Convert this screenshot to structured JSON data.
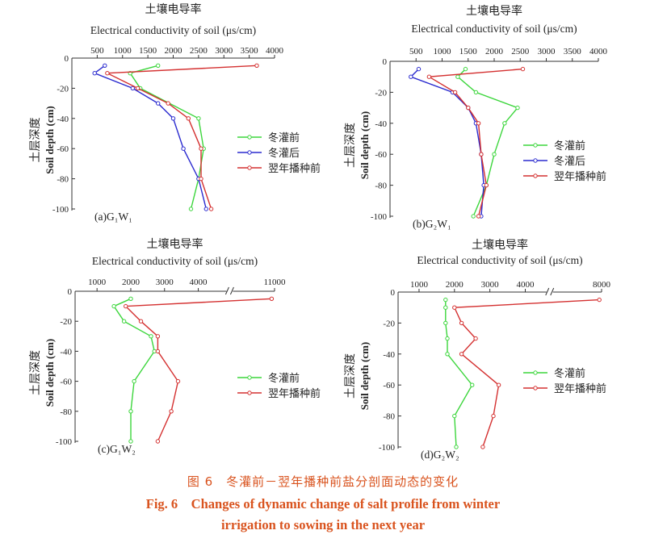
{
  "colors": {
    "before": "#3cd63c",
    "after": "#2b2bcf",
    "next": "#d43030",
    "caption": "#d9531e"
  },
  "caption": {
    "cn": "图 6　冬灌前－翌年播种前盐分剖面动态的变化",
    "en_line1": "Fig. 6　Changes of dynamic change of salt profile from winter",
    "en_line2": "irrigation to sowing in the next year"
  },
  "chart_data": [
    {
      "type": "line",
      "panel_label": "(a)G₁W₁",
      "xlabel_cn": "土壤电导率",
      "xlabel": "Electrical conductivity of soil (μs/cm)",
      "ylabel_cn": "土层深度",
      "ylabel": "Soil depth (cm)",
      "xlim": [
        0,
        4000
      ],
      "ylim": [
        -100,
        0
      ],
      "xticks": [
        500,
        1000,
        1500,
        2000,
        2500,
        3000,
        3500,
        4000
      ],
      "yticks": [
        0,
        -20,
        -40,
        -60,
        -80,
        -100
      ],
      "legend_position": "right",
      "series": [
        {
          "name": "冬灌前",
          "color_key": "before",
          "points": [
            [
              1700,
              -5
            ],
            [
              1150,
              -10
            ],
            [
              1350,
              -20
            ],
            [
              2500,
              -40
            ],
            [
              2600,
              -60
            ],
            [
              2500,
              -80
            ],
            [
              2350,
              -100
            ]
          ]
        },
        {
          "name": "冬灌后",
          "color_key": "after",
          "points": [
            [
              650,
              -5
            ],
            [
              450,
              -10
            ],
            [
              1200,
              -20
            ],
            [
              1700,
              -30
            ],
            [
              2000,
              -40
            ],
            [
              2200,
              -60
            ],
            [
              2500,
              -80
            ],
            [
              2650,
              -100
            ]
          ]
        },
        {
          "name": "翌年播种前",
          "color_key": "next",
          "points": [
            [
              3650,
              -5
            ],
            [
              700,
              -10
            ],
            [
              1300,
              -20
            ],
            [
              1900,
              -30
            ],
            [
              2300,
              -40
            ],
            [
              2550,
              -60
            ],
            [
              2550,
              -80
            ],
            [
              2750,
              -100
            ]
          ]
        }
      ]
    },
    {
      "type": "line",
      "panel_label": "(b)G₂W₁",
      "xlabel_cn": "土壤电导率",
      "xlabel": "Electrical conductivity of soil (μs/cm)",
      "ylabel_cn": "土层深度",
      "ylabel": "Soil depth (cm)",
      "xlim": [
        0,
        4000
      ],
      "ylim": [
        -100,
        0
      ],
      "xticks": [
        500,
        1000,
        1500,
        2000,
        2500,
        3000,
        3500,
        4000
      ],
      "yticks": [
        0,
        -20,
        -40,
        -60,
        -80,
        -100
      ],
      "legend_position": "right",
      "series": [
        {
          "name": "冬灌前",
          "color_key": "before",
          "points": [
            [
              1450,
              -5
            ],
            [
              1300,
              -10
            ],
            [
              1650,
              -20
            ],
            [
              2450,
              -30
            ],
            [
              2200,
              -40
            ],
            [
              2000,
              -60
            ],
            [
              1850,
              -80
            ],
            [
              1600,
              -100
            ]
          ]
        },
        {
          "name": "冬灌后",
          "color_key": "after",
          "points": [
            [
              550,
              -5
            ],
            [
              400,
              -10
            ],
            [
              1200,
              -20
            ],
            [
              1500,
              -30
            ],
            [
              1650,
              -40
            ],
            [
              1750,
              -60
            ],
            [
              1800,
              -80
            ],
            [
              1750,
              -100
            ]
          ]
        },
        {
          "name": "翌年播种前",
          "color_key": "next",
          "points": [
            [
              2550,
              -5
            ],
            [
              750,
              -10
            ],
            [
              1250,
              -20
            ],
            [
              1500,
              -30
            ],
            [
              1700,
              -40
            ],
            [
              1750,
              -60
            ],
            [
              1850,
              -80
            ],
            [
              1700,
              -100
            ]
          ]
        }
      ]
    },
    {
      "type": "line",
      "panel_label": "(c)G₁W₂",
      "xlabel_cn": "土壤电导率",
      "xlabel": "Electrical conductivity of soil (μs/cm)",
      "ylabel_cn": "土层深度",
      "ylabel": "Soil depth (cm)",
      "x_break": true,
      "xticks": [
        "1000",
        "2000",
        "3000",
        "4000",
        "11000"
      ],
      "yticks": [
        0,
        -20,
        -40,
        -60,
        -80,
        -100
      ],
      "legend_position": "right",
      "series": [
        {
          "name": "冬灌前",
          "color_key": "before",
          "points": [
            [
              2000,
              -5
            ],
            [
              1500,
              -10
            ],
            [
              1800,
              -20
            ],
            [
              2600,
              -30
            ],
            [
              2700,
              -40
            ],
            [
              2100,
              -60
            ],
            [
              2000,
              -80
            ],
            [
              2000,
              -100
            ]
          ]
        },
        {
          "name": "翌年播种前",
          "color_key": "next",
          "points": [
            [
              10500,
              -5
            ],
            [
              1850,
              -10
            ],
            [
              2300,
              -20
            ],
            [
              2800,
              -30
            ],
            [
              2800,
              -40
            ],
            [
              3400,
              -60
            ],
            [
              3200,
              -80
            ],
            [
              2800,
              -100
            ]
          ]
        }
      ]
    },
    {
      "type": "line",
      "panel_label": "(d)G₂W₂",
      "xlabel_cn": "土壤电导率",
      "xlabel": "Electrical conductivity of soil (μs/cm)",
      "ylabel_cn": "土层深度",
      "ylabel": "Soil depth (cm)",
      "x_break": true,
      "xticks": [
        "1000",
        "2000",
        "3000",
        "4000",
        "8000"
      ],
      "yticks": [
        0,
        -20,
        -40,
        -60,
        -80,
        -100
      ],
      "legend_position": "right",
      "series": [
        {
          "name": "冬灌前",
          "color_key": "before",
          "points": [
            [
              1750,
              -5
            ],
            [
              1750,
              -10
            ],
            [
              1750,
              -20
            ],
            [
              1800,
              -30
            ],
            [
              1800,
              -40
            ],
            [
              2500,
              -60
            ],
            [
              2000,
              -80
            ],
            [
              2050,
              -100
            ]
          ]
        },
        {
          "name": "翌年播种前",
          "color_key": "next",
          "points": [
            [
              7800,
              -5
            ],
            [
              2000,
              -10
            ],
            [
              2200,
              -20
            ],
            [
              2600,
              -30
            ],
            [
              2200,
              -40
            ],
            [
              3250,
              -60
            ],
            [
              3100,
              -80
            ],
            [
              2800,
              -100
            ]
          ]
        }
      ]
    }
  ]
}
